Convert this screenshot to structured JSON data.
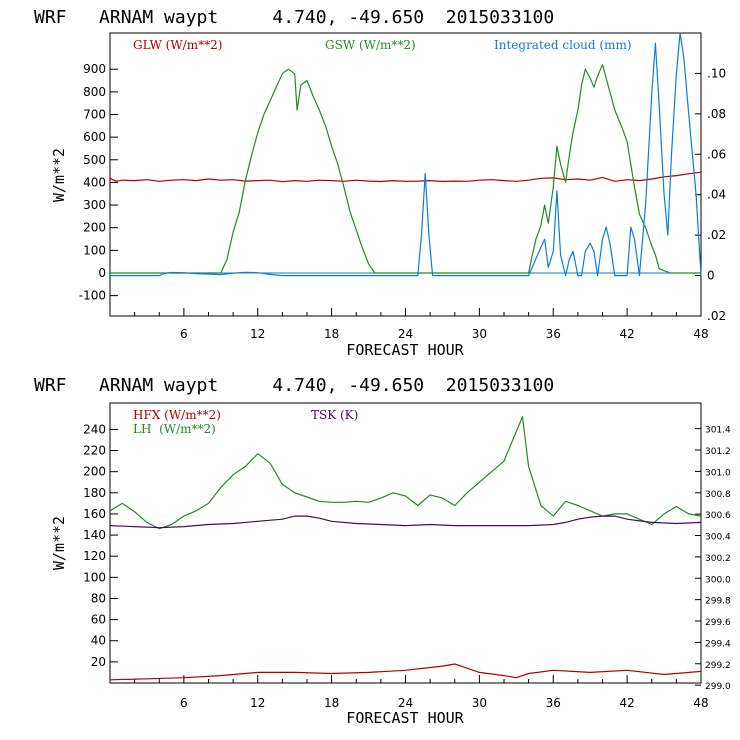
{
  "chart_data": [
    {
      "type": "line",
      "title": "WRF   ARNAM waypt     4.740, -49.650  2015033100",
      "xlabel": "FORECAST HOUR",
      "ylabel": "W/m**2",
      "xlim": [
        0,
        48
      ],
      "ylim": [
        -190,
        1060
      ],
      "xticks": [
        6,
        12,
        18,
        24,
        30,
        36,
        42,
        48
      ],
      "yticks": [
        -100,
        0,
        100,
        200,
        300,
        400,
        500,
        600,
        700,
        800,
        900
      ],
      "y2lim": [
        -0.02,
        0.12
      ],
      "y2ticks": [
        -0.02,
        0,
        0.02,
        0.04,
        0.06,
        0.08,
        0.1
      ],
      "y2ticklabels": [
        ".02",
        "0",
        ".02",
        ".04",
        ".06",
        ".08",
        ".10"
      ],
      "legend": [
        "GLW (W/m**2)",
        "GSW (W/m**2)",
        "Integrated cloud (mm)"
      ],
      "series": [
        {
          "name": "GLW (W/m**2)",
          "color": "#b00000",
          "axis": "left",
          "x": [
            0,
            0.5,
            1,
            2,
            3,
            4,
            5,
            6,
            7,
            8,
            9,
            10,
            11,
            12,
            13,
            14,
            15,
            16,
            17,
            18,
            19,
            20,
            21,
            22,
            23,
            24,
            25,
            26,
            27,
            28,
            29,
            30,
            31,
            32,
            33,
            34,
            35,
            36,
            37,
            38,
            39,
            40,
            41,
            42,
            43,
            44,
            45,
            46,
            47,
            48
          ],
          "y": [
            418,
            405,
            410,
            408,
            412,
            405,
            410,
            412,
            408,
            415,
            410,
            412,
            406,
            408,
            410,
            403,
            408,
            405,
            410,
            408,
            405,
            410,
            406,
            404,
            408,
            405,
            406,
            408,
            404,
            406,
            405,
            410,
            412,
            408,
            405,
            410,
            418,
            420,
            412,
            415,
            410,
            422,
            405,
            412,
            408,
            415,
            425,
            430,
            438,
            445
          ]
        },
        {
          "name": "GSW (W/m**2)",
          "color": "#228b22",
          "axis": "left",
          "x": [
            0,
            9,
            9.5,
            10,
            10.5,
            11,
            11.5,
            12,
            12.5,
            13,
            13.5,
            14,
            14.2,
            14.5,
            15,
            15.2,
            15.5,
            16,
            16.5,
            17,
            17.5,
            18,
            18.5,
            19,
            19.5,
            20,
            20.5,
            21,
            21.5,
            34,
            34.3,
            34.6,
            35,
            35.3,
            35.6,
            36,
            36.3,
            36.6,
            37,
            37.3,
            37.6,
            38,
            38.3,
            38.6,
            39,
            39.3,
            39.6,
            40,
            40.3,
            40.6,
            41,
            41.3,
            41.6,
            42,
            42.3,
            42.6,
            43,
            43.5,
            44,
            44.3,
            44.6,
            45,
            45.5,
            46,
            46.5,
            48
          ],
          "y": [
            0,
            0,
            60,
            180,
            270,
            410,
            520,
            620,
            700,
            760,
            820,
            880,
            890,
            900,
            880,
            720,
            830,
            850,
            780,
            720,
            650,
            560,
            480,
            380,
            270,
            190,
            110,
            40,
            0,
            0,
            80,
            150,
            210,
            300,
            220,
            380,
            560,
            480,
            400,
            520,
            620,
            720,
            830,
            900,
            860,
            820,
            870,
            920,
            860,
            800,
            720,
            680,
            640,
            580,
            480,
            380,
            260,
            200,
            120,
            80,
            20,
            10,
            0,
            0,
            0,
            0
          ]
        },
        {
          "name": "Integrated cloud (mm)",
          "color": "#0a7ed8",
          "axis": "right",
          "x": [
            0,
            4,
            4.5,
            5,
            6,
            7,
            8,
            9,
            10,
            11,
            12,
            13,
            14,
            25,
            25.3,
            25.6,
            25.9,
            26.2,
            34,
            35,
            35.3,
            35.6,
            36,
            36.3,
            36.6,
            37,
            37.3,
            37.6,
            38,
            38.3,
            38.6,
            39,
            39.3,
            39.6,
            40,
            40.3,
            40.6,
            41,
            42,
            42.3,
            42.6,
            43,
            43.5,
            44,
            44.3,
            44.6,
            45,
            45.3,
            45.6,
            46,
            46.3,
            46.6,
            47,
            47.3,
            47.6,
            48
          ],
          "y": [
            0,
            0,
            0.0012,
            0.0015,
            0.0014,
            0.001,
            0.0008,
            0.0005,
            0.0012,
            0.0016,
            0.0014,
            0.0006,
            0,
            0,
            0.02,
            0.0505,
            0.02,
            0,
            0,
            0.014,
            0.018,
            0.004,
            0.012,
            0.042,
            0.01,
            0,
            0.008,
            0.012,
            0,
            0,
            0.012,
            0.016,
            0.012,
            0,
            0.018,
            0.024,
            0.016,
            0,
            0,
            0.024,
            0.018,
            0,
            0.035,
            0.09,
            0.115,
            0.085,
            0.04,
            0.02,
            0.06,
            0.1,
            0.124,
            0.108,
            0.08,
            0.06,
            0.04,
            0.0
          ]
        }
      ]
    },
    {
      "type": "line",
      "title": "WRF   ARNAM waypt     4.740, -49.650  2015033100",
      "xlabel": "FORECAST HOUR",
      "ylabel": "W/m**2",
      "xlim": [
        0,
        48
      ],
      "ylim": [
        0,
        265
      ],
      "xticks": [
        6,
        12,
        18,
        24,
        30,
        36,
        42,
        48
      ],
      "yticks": [
        20,
        40,
        60,
        80,
        100,
        120,
        140,
        160,
        180,
        200,
        220,
        240
      ],
      "y2lim": [
        299.02,
        301.64
      ],
      "y2ticks": [
        299.0,
        299.2,
        299.4,
        299.6,
        299.8,
        300.0,
        300.2,
        300.4,
        300.6,
        300.8,
        301.0,
        301.2,
        301.4
      ],
      "y2ticklabels": [
        "299.0",
        "299.2",
        "299.4",
        "299.6",
        "299.8",
        "300.0",
        "300.2",
        "300.4",
        "300.6",
        "300.8",
        "301.0",
        "301.2",
        "301.4"
      ],
      "legend": [
        "HFX (W/m**2)",
        "LH  (W/m**2)",
        "TSK (K)"
      ],
      "series": [
        {
          "name": "HFX (W/m**2)",
          "color": "#b00000",
          "axis": "left",
          "x": [
            0,
            3,
            6,
            9,
            12,
            15,
            18,
            21,
            24,
            27,
            28,
            29,
            30,
            32,
            33,
            34,
            36,
            39,
            42,
            45,
            48
          ],
          "y": [
            3,
            4,
            5,
            7,
            10,
            10,
            9,
            10,
            12,
            16,
            18,
            14,
            10,
            7,
            5,
            9,
            12,
            10,
            12,
            8,
            11
          ]
        },
        {
          "name": "LH  (W/m**2)",
          "color": "#228b22",
          "axis": "left",
          "x": [
            0,
            1,
            2,
            3,
            4,
            5,
            6,
            7,
            8,
            9,
            10,
            11,
            12,
            13,
            14,
            15,
            16,
            17,
            18,
            19,
            20,
            21,
            22,
            23,
            24,
            25,
            26,
            27,
            28,
            29,
            30,
            31,
            32,
            33,
            33.5,
            34,
            35,
            36,
            37,
            38,
            39,
            40,
            41,
            42,
            43,
            44,
            45,
            46,
            47,
            48
          ],
          "y": [
            163,
            170,
            162,
            152,
            146,
            150,
            158,
            163,
            170,
            185,
            197,
            205,
            217,
            208,
            188,
            180,
            176,
            172,
            171,
            171,
            172,
            171,
            175,
            180,
            177,
            168,
            178,
            175,
            168,
            180,
            190,
            200,
            210,
            238,
            252,
            205,
            168,
            158,
            172,
            168,
            163,
            158,
            160,
            160,
            155,
            150,
            160,
            167,
            160,
            158
          ]
        },
        {
          "name": "TSK (K)",
          "color": "#4b0a5a",
          "axis": "left",
          "x": [
            0,
            2,
            4,
            6,
            8,
            10,
            12,
            14,
            15,
            16,
            17,
            18,
            20,
            22,
            24,
            26,
            28,
            30,
            32,
            34,
            36,
            37,
            38,
            39,
            40,
            41,
            42,
            44,
            46,
            48
          ],
          "y": [
            149,
            148,
            147,
            148,
            150,
            151,
            153,
            155,
            158,
            158,
            156,
            153,
            151,
            150,
            149,
            150,
            149,
            149,
            149,
            149,
            150,
            152,
            155,
            157,
            158,
            158,
            155,
            152,
            151,
            152
          ]
        }
      ]
    }
  ]
}
